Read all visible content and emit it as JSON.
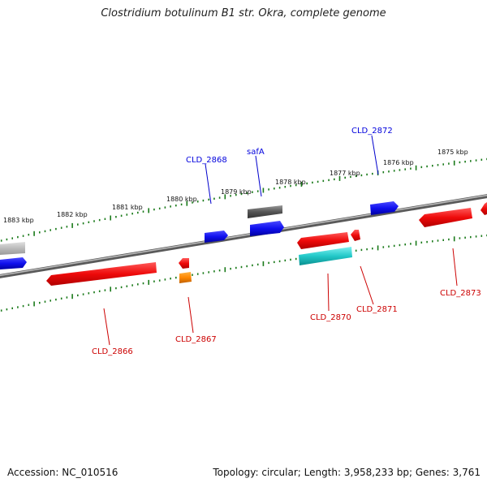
{
  "title": "Clostridium botulinum B1 str. Okra, complete genome",
  "footer": {
    "accession": "Accession: NC_010516",
    "summary": "Topology: circular; Length: 3,958,233 bp; Genes: 3,761"
  },
  "ruler_labels": [
    "1875 kbp",
    "1876 kbp",
    "1877 kbp",
    "1878 kbp",
    "1879 kbp",
    "1880 kbp",
    "1881 kbp",
    "1882 kbp",
    "1883 kbp"
  ],
  "genes_forward": [
    {
      "label": "CLD_2872",
      "color": "#0000dd"
    },
    {
      "label": "safA",
      "color": "#0000dd"
    },
    {
      "label": "CLD_2868",
      "color": "#0000dd"
    }
  ],
  "genes_reverse": [
    {
      "label": "CLD_2873",
      "color": "#cc0000"
    },
    {
      "label": "CLD_2871",
      "color": "#cc0000"
    },
    {
      "label": "CLD_2870",
      "color": "#cc0000"
    },
    {
      "label": "CLD_2867",
      "color": "#cc0000"
    },
    {
      "label": "CLD_2866",
      "color": "#cc0000"
    }
  ],
  "colors": {
    "backbone": "#888888",
    "ticks": "#1a7a1a",
    "forward_gene": "#1a1aee",
    "reverse_gene": "#ee1111",
    "rna_gene": "#22cccc",
    "pseudo_gene": "#555555",
    "other_gene": "#ff8800",
    "partial_gene": "#bbbbbb"
  }
}
